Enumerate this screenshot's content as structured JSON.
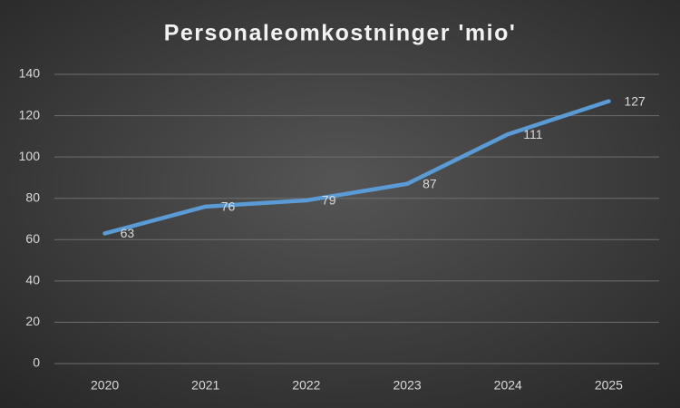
{
  "chart_data": {
    "type": "line",
    "title": "Personaleomkostninger 'mio'",
    "categories": [
      "2020",
      "2021",
      "2022",
      "2023",
      "2024",
      "2025"
    ],
    "series": [
      {
        "name": "Personaleomkostninger",
        "color": "#5b9bd5",
        "values": [
          63,
          76,
          79,
          87,
          111,
          127
        ]
      }
    ],
    "ylim": [
      0,
      140
    ],
    "yticks": [
      0,
      20,
      40,
      60,
      80,
      100,
      120,
      140
    ],
    "grid": true
  }
}
